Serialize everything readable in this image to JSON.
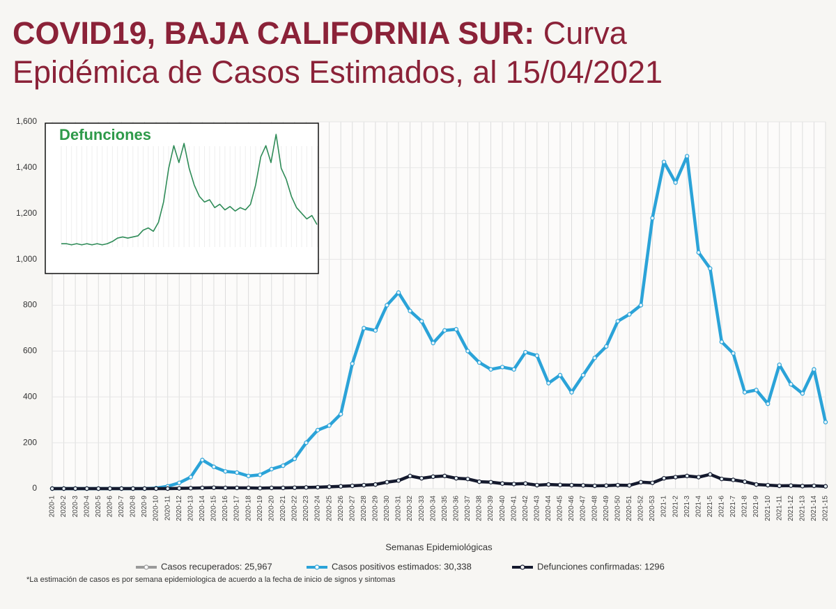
{
  "chart_data": [
    {
      "type": "line",
      "title_bold": "COVID19, BAJA CALIFORNIA SUR:",
      "title_rest": "Curva",
      "subtitle": "Epidémica de Casos Estimados, al 15/04/2021",
      "x_label": "Semanas Epidemiológicas",
      "footnote": "*La estimación de casos es por semana epidemiologica de acuerdo a la fecha de inicio de signos y sintomas",
      "categories": [
        "2020-1",
        "2020-2",
        "2020-3",
        "2020-4",
        "2020-5",
        "2020-6",
        "2020-7",
        "2020-8",
        "2020-9",
        "2020-10",
        "2020-11",
        "2020-12",
        "2020-13",
        "2020-14",
        "2020-15",
        "2020-16",
        "2020-17",
        "2020-18",
        "2020-19",
        "2020-20",
        "2020-21",
        "2020-22",
        "2020-23",
        "2020-24",
        "2020-25",
        "2020-26",
        "2020-27",
        "2020-28",
        "2020-29",
        "2020-30",
        "2020-31",
        "2020-32",
        "2020-33",
        "2020-34",
        "2020-35",
        "2020-36",
        "2020-37",
        "2020-38",
        "2020-39",
        "2020-40",
        "2020-41",
        "2020-42",
        "2020-43",
        "2020-44",
        "2020-45",
        "2020-46",
        "2020-47",
        "2020-48",
        "2020-49",
        "2020-50",
        "2020-51",
        "2020-52",
        "2020-53",
        "2021-1",
        "2021-2",
        "2021-3",
        "2021-4",
        "2021-5",
        "2021-6",
        "2021-7",
        "2021-8",
        "2021-9",
        "2021-10",
        "2021-11",
        "2021-12",
        "2021-13",
        "2021-14",
        "2021-15"
      ],
      "series": [
        {
          "name": "Casos recuperados: 25,967",
          "color": "#9a9a9a",
          "values": [
            null,
            null,
            null,
            null,
            null,
            null,
            null,
            null,
            null,
            null,
            null,
            null,
            null,
            null,
            null,
            null,
            null,
            null,
            null,
            null,
            null,
            null,
            null,
            null,
            null,
            null,
            null,
            null,
            null,
            null,
            null,
            null,
            null,
            null,
            null,
            null,
            null,
            null,
            null,
            null,
            null,
            null,
            null,
            null,
            null,
            null,
            null,
            null,
            null,
            null,
            null,
            null,
            null,
            null,
            null,
            null,
            null,
            null,
            null,
            null,
            null,
            null,
            null,
            null,
            null,
            null,
            null,
            null
          ]
        },
        {
          "name": "Casos positivos estimados: 30,338",
          "color": "#2ba3d8",
          "values": [
            0,
            0,
            0,
            0,
            0,
            0,
            0,
            0,
            0,
            2,
            10,
            25,
            50,
            125,
            95,
            75,
            70,
            55,
            60,
            85,
            100,
            130,
            200,
            255,
            275,
            325,
            545,
            700,
            690,
            800,
            855,
            775,
            730,
            635,
            690,
            695,
            600,
            550,
            520,
            530,
            520,
            595,
            580,
            460,
            495,
            420,
            495,
            570,
            620,
            730,
            760,
            800,
            1180,
            1425,
            1335,
            1450,
            1030,
            960,
            640,
            590,
            420,
            430,
            370,
            540,
            455,
            415,
            520,
            290
          ]
        },
        {
          "name": "Defunciones confirmadas: 1296",
          "color": "#151a2e",
          "values": [
            0,
            0,
            0,
            0,
            0,
            0,
            0,
            0,
            0,
            0,
            0,
            1,
            2,
            3,
            4,
            3,
            3,
            3,
            2,
            3,
            3,
            4,
            5,
            6,
            8,
            10,
            12,
            15,
            18,
            28,
            35,
            55,
            45,
            52,
            55,
            45,
            42,
            30,
            28,
            22,
            20,
            22,
            15,
            18,
            16,
            15,
            14,
            12,
            13,
            15,
            14,
            28,
            25,
            45,
            50,
            55,
            50,
            62,
            42,
            38,
            30,
            18,
            15,
            12,
            13,
            11,
            12,
            10
          ]
        }
      ],
      "ylim": [
        0,
        1600
      ],
      "yticks": [
        0,
        200,
        400,
        600,
        800,
        {
          "value": 1000,
          "label": "1,000"
        },
        {
          "value": 1200,
          "label": "1,200"
        },
        {
          "value": 1400,
          "label": "1,400"
        },
        {
          "value": 1600,
          "label": "1,600"
        }
      ],
      "grid": true
    },
    {
      "type": "line",
      "title": "Defunciones",
      "color": "#2e8b57",
      "values": [
        3,
        3,
        2,
        3,
        2,
        3,
        2,
        3,
        2,
        3,
        5,
        8,
        9,
        8,
        9,
        10,
        15,
        17,
        14,
        22,
        40,
        70,
        90,
        75,
        92,
        70,
        55,
        45,
        40,
        42,
        35,
        38,
        33,
        36,
        32,
        35,
        33,
        38,
        55,
        80,
        90,
        75,
        100,
        70,
        60,
        45,
        35,
        30,
        25,
        28,
        20
      ],
      "ylim": [
        0,
        105
      ]
    }
  ]
}
